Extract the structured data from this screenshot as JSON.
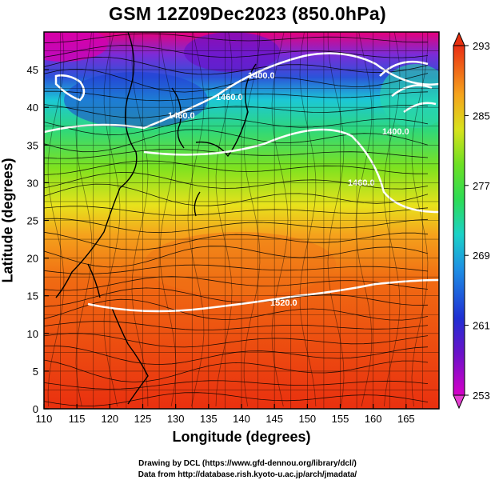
{
  "title": "GSM 12Z09Dec2023 (850.0hPa)",
  "map": {
    "xlabel": "Longitude (degrees)",
    "ylabel": "Latitude  (degrees)",
    "x_range": [
      110,
      170
    ],
    "y_range": [
      0,
      50
    ],
    "x_ticks": [
      "110",
      "115",
      "120",
      "125",
      "130",
      "135",
      "140",
      "145",
      "150",
      "155",
      "160",
      "165"
    ],
    "y_ticks": [
      "0",
      "5",
      "10",
      "15",
      "20",
      "25",
      "30",
      "35",
      "40",
      "45"
    ]
  },
  "colorbar": {
    "labels": [
      "253",
      "261",
      "269",
      "277",
      "285",
      "293"
    ],
    "range": [
      253,
      293
    ]
  },
  "contours": {
    "labels": [
      "1400.0",
      "1460.0",
      "1460.0",
      "1460.0",
      "1400.0",
      "1520.0"
    ]
  },
  "footer": {
    "line1": "Drawing by DCL (https://www.gfd-dennou.org/library/dcl/)",
    "line2": "Data from http://database.rish.kyoto-u.ac.jp/arch/jmadata/"
  }
}
